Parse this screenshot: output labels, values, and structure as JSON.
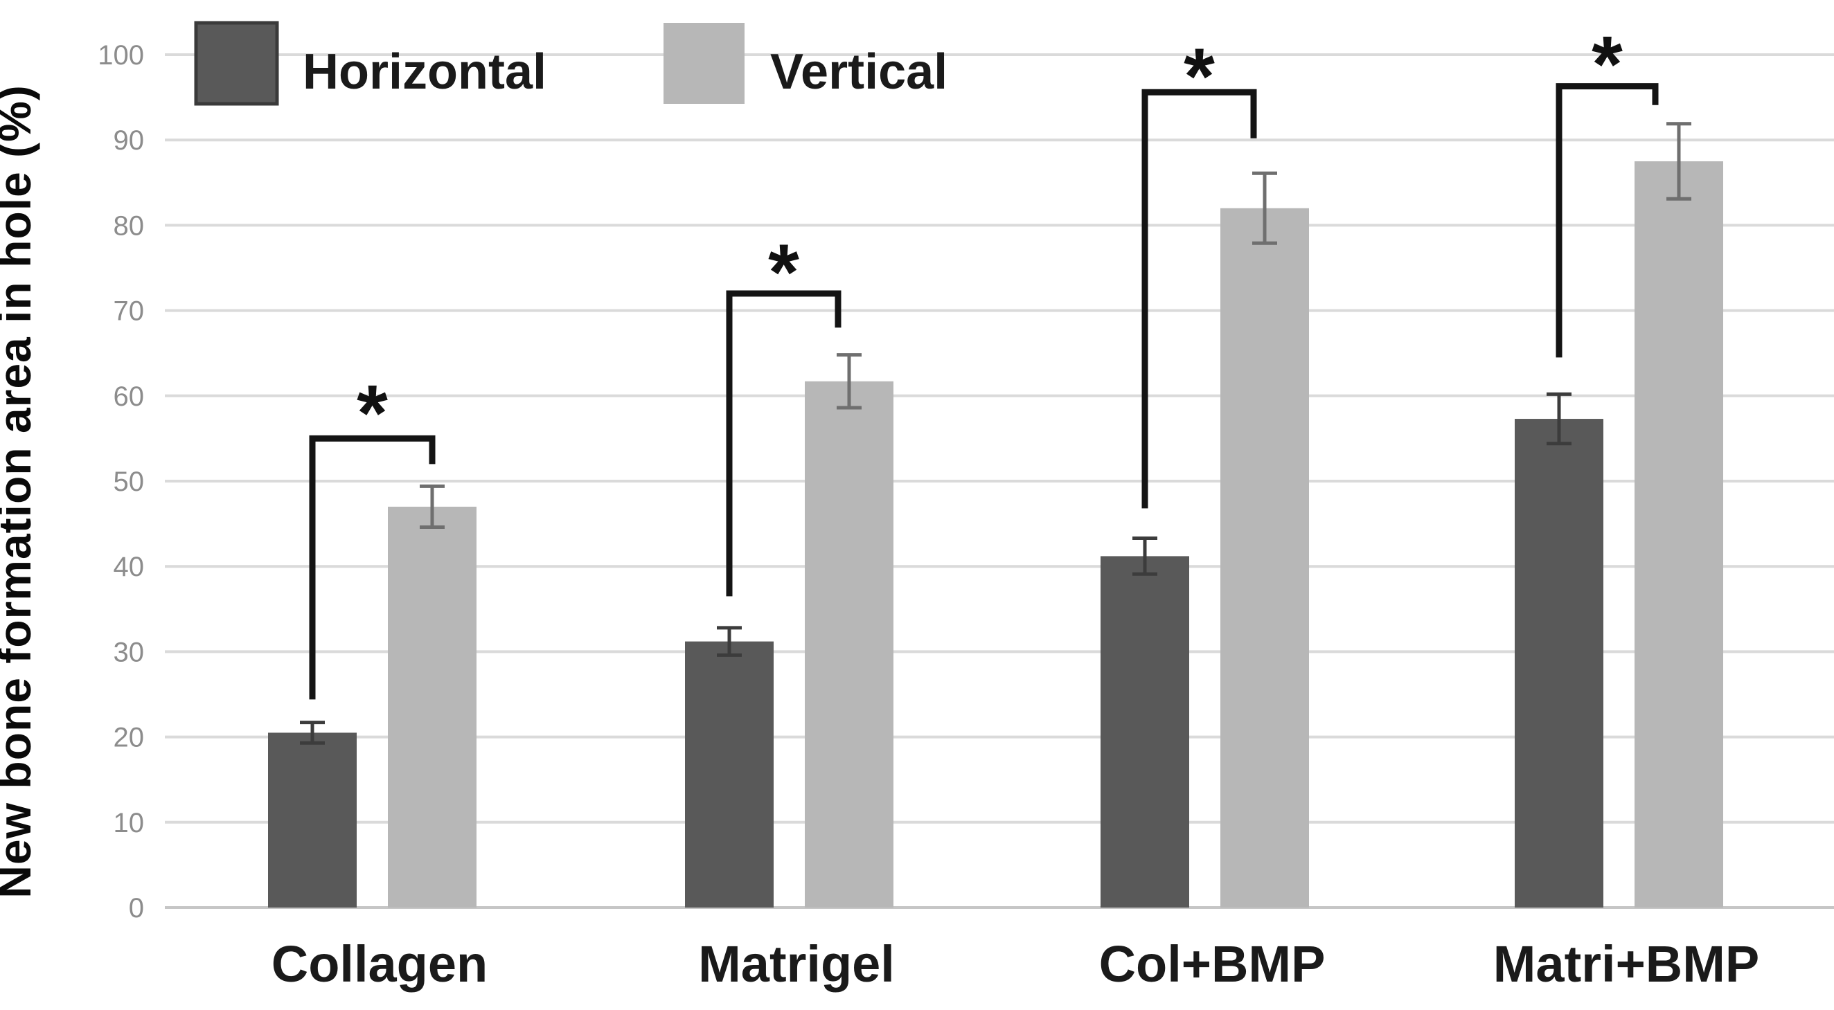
{
  "figure": {
    "background": "#ffffff",
    "y_axis_title": "New bone formation area in hole (%)"
  },
  "legend": {
    "items": [
      {
        "label": "Horizontal",
        "swatch_color": "#595959",
        "swatch_border": "#3a3a3a"
      },
      {
        "label": "Vertical",
        "swatch_color": "#b7b7b7",
        "swatch_border": ""
      }
    ]
  },
  "chart_data": {
    "type": "bar",
    "title": "",
    "xlabel": "",
    "ylabel": "New bone formation area in hole (%)",
    "ylim": [
      0,
      100
    ],
    "yticks": [
      0,
      10,
      20,
      30,
      40,
      50,
      60,
      70,
      80,
      90,
      100
    ],
    "ytick_labels": [
      "0",
      "10",
      "20",
      "30",
      "40",
      "50",
      "60",
      "70",
      "80",
      "90",
      "100"
    ],
    "grid": true,
    "legend_position": "top-left",
    "categories": [
      "Collagen",
      "Matrigel",
      "Col+BMP",
      "Matri+BMP"
    ],
    "series": [
      {
        "name": "Horizontal",
        "color": "#595959",
        "error_color": "#3c3c3c",
        "values": [
          20.5,
          31.2,
          41.2,
          57.3
        ],
        "errors": [
          1.2,
          1.6,
          2.1,
          2.9
        ]
      },
      {
        "name": "Vertical",
        "color": "#b7b7b7",
        "error_color": "#6f6f6f",
        "values": [
          47.0,
          61.7,
          82.0,
          87.5
        ],
        "errors": [
          2.4,
          3.1,
          4.1,
          4.4
        ]
      }
    ],
    "significance_brackets": [
      {
        "category": "Collagen",
        "label": "*",
        "left_arm_y": 24.4,
        "top_y": 55.0,
        "right_arm_y": 52.0,
        "star_y": 58.0
      },
      {
        "category": "Matrigel",
        "label": "*",
        "left_arm_y": 36.5,
        "top_y": 72.0,
        "right_arm_y": 68.0,
        "star_y": 74.5
      },
      {
        "category": "Col+BMP",
        "label": "*",
        "left_arm_y": 46.8,
        "top_y": 95.6,
        "right_arm_y": 90.2,
        "star_y": 97.5
      },
      {
        "category": "Matri+BMP",
        "label": "*",
        "left_arm_y": 64.5,
        "top_y": 96.3,
        "right_arm_y": 94.1,
        "star_y": 98.9
      }
    ]
  },
  "colors": {
    "gridline": "#dadada",
    "baseline": "#c6c6c6",
    "tick_label": "#8c8c8c",
    "bracket": "#141414",
    "category_label": "#1a1a1a",
    "axis_title": "#0a0a0a"
  }
}
